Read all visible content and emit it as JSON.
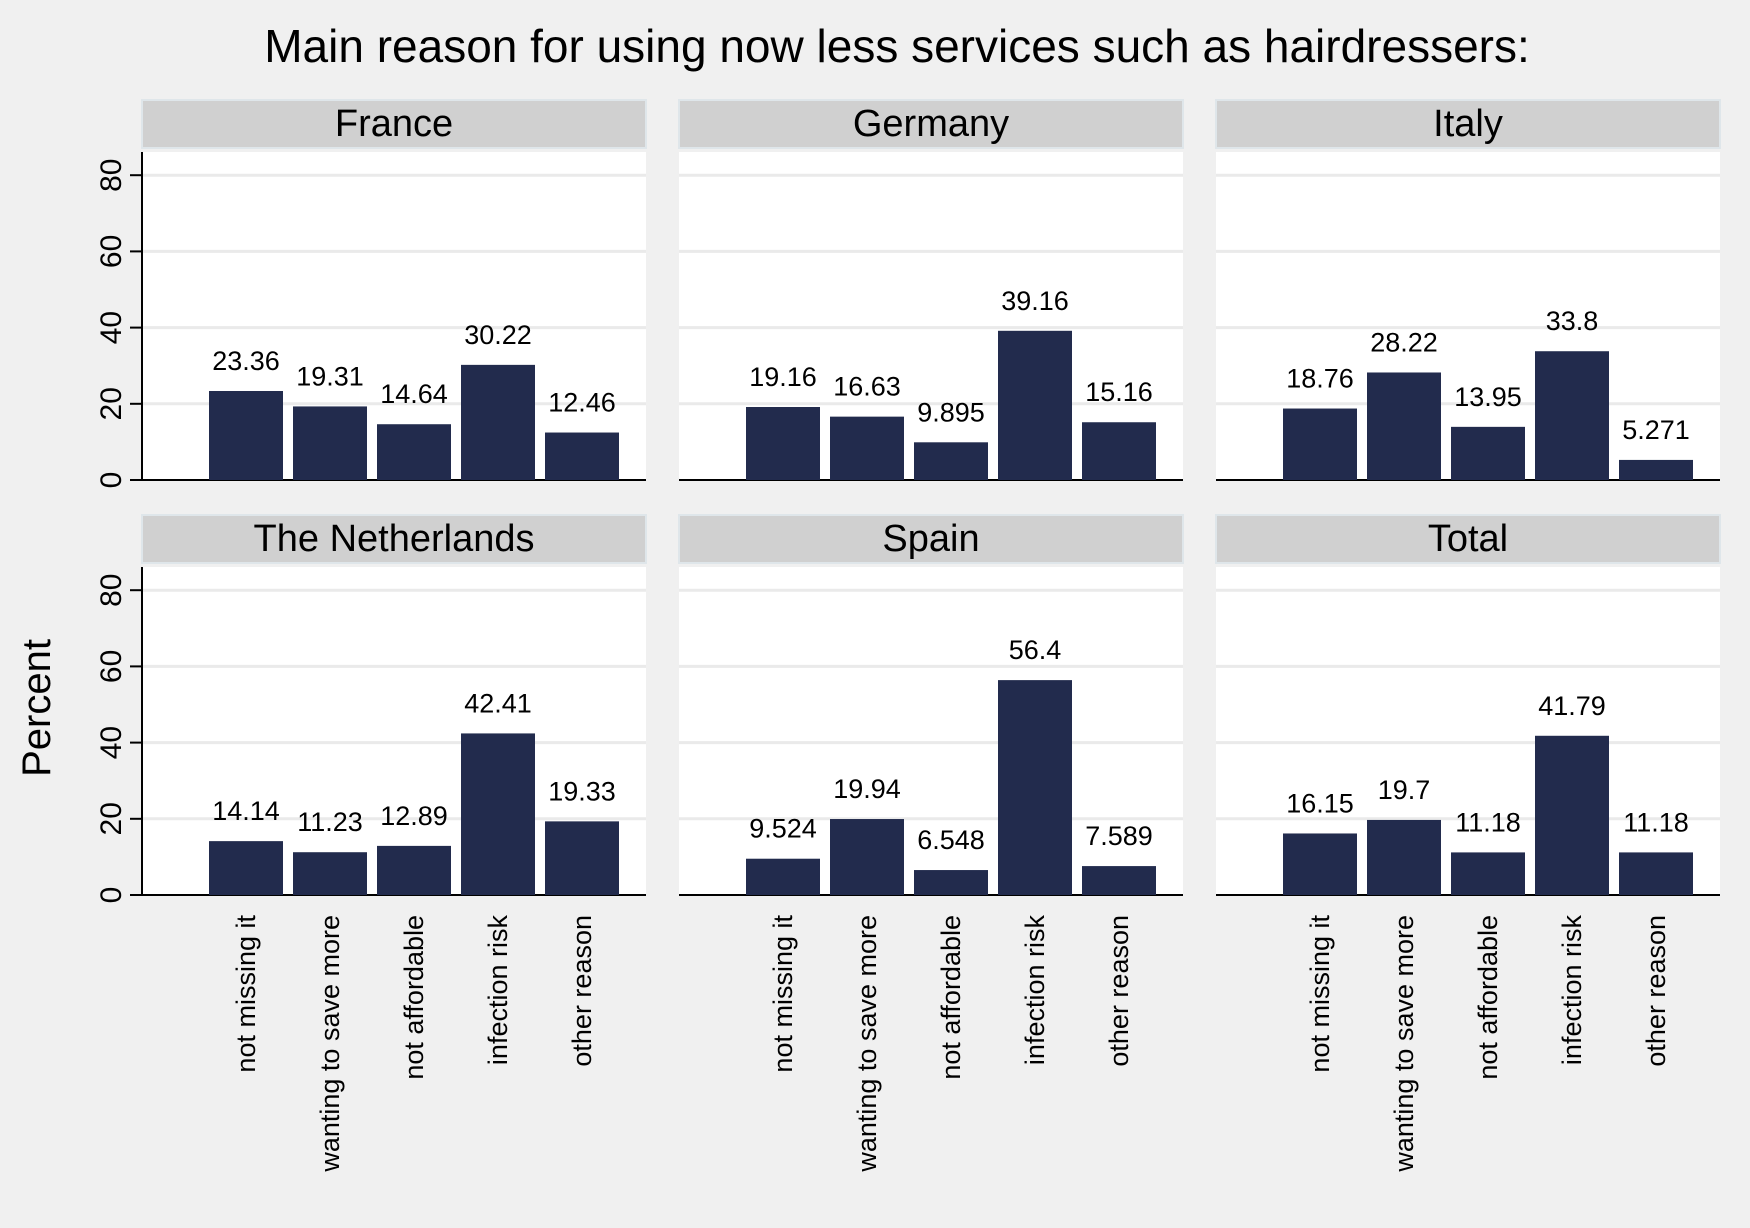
{
  "chart_data": {
    "type": "bar",
    "title": "Main reason for using now less services such as hairdressers:",
    "ylabel": "Percent",
    "xlabel": "",
    "ylim": [
      0,
      85
    ],
    "yticks": [
      0,
      20,
      40,
      60,
      80
    ],
    "grid": true,
    "categories": [
      "not missing it",
      "wanting to save more",
      "not affordable",
      "infection risk",
      "other reason"
    ],
    "bar_color": "#222b4d",
    "panels": [
      {
        "name": "France",
        "values": [
          23.36,
          19.31,
          14.64,
          30.22,
          12.46
        ],
        "labels": [
          "23.36",
          "19.31",
          "14.64",
          "30.22",
          "12.46"
        ]
      },
      {
        "name": "Germany",
        "values": [
          19.16,
          16.63,
          9.895,
          39.16,
          15.16
        ],
        "labels": [
          "19.16",
          "16.63",
          "9.895",
          "39.16",
          "15.16"
        ]
      },
      {
        "name": "Italy",
        "values": [
          18.76,
          28.22,
          13.95,
          33.8,
          5.271
        ],
        "labels": [
          "18.76",
          "28.22",
          "13.95",
          "33.8",
          "5.271"
        ]
      },
      {
        "name": "The Netherlands",
        "values": [
          14.14,
          11.23,
          12.89,
          42.41,
          19.33
        ],
        "labels": [
          "14.14",
          "11.23",
          "12.89",
          "42.41",
          "19.33"
        ]
      },
      {
        "name": "Spain",
        "values": [
          9.524,
          19.94,
          6.548,
          56.4,
          7.589
        ],
        "labels": [
          "9.524",
          "19.94",
          "6.548",
          "56.4",
          "7.589"
        ]
      },
      {
        "name": "Total",
        "values": [
          16.15,
          19.7,
          11.18,
          41.79,
          11.18
        ],
        "labels": [
          "16.15",
          "19.7",
          "11.18",
          "41.79",
          "11.18"
        ]
      }
    ]
  }
}
